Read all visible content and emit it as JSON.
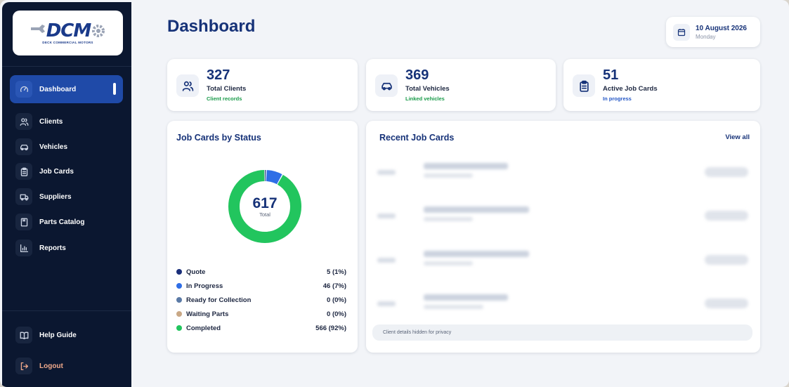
{
  "brand": {
    "logo_text": "DCM",
    "logo_subtitle": "DECK COMMERCIAL MOTORS"
  },
  "sidebar": {
    "items": [
      {
        "label": "Dashboard",
        "icon": "speedometer-icon",
        "active": true
      },
      {
        "label": "Clients",
        "icon": "users-icon"
      },
      {
        "label": "Vehicles",
        "icon": "car-icon"
      },
      {
        "label": "Job Cards",
        "icon": "clipboard-icon"
      },
      {
        "label": "Suppliers",
        "icon": "truck-icon"
      },
      {
        "label": "Parts Catalog",
        "icon": "book-icon"
      },
      {
        "label": "Reports",
        "icon": "bar-chart-icon"
      }
    ],
    "help_label": "Help Guide",
    "logout_label": "Logout"
  },
  "header": {
    "title": "Dashboard",
    "date": "10 August 2026",
    "weekday": "Monday"
  },
  "stats": [
    {
      "value": "327",
      "label": "Total Clients",
      "sub": "Client records",
      "sub_color": "#1a9b4a"
    },
    {
      "value": "369",
      "label": "Total Vehicles",
      "sub": "Linked vehicles",
      "sub_color": "#1a9b4a"
    },
    {
      "value": "51",
      "label": "Active Job Cards",
      "sub": "In progress",
      "sub_color": "#2457c6"
    }
  ],
  "job_status": {
    "title": "Job Cards by Status",
    "total": "617",
    "total_label": "Total",
    "legend": [
      {
        "label": "Quote",
        "value": "5 (1%)",
        "color": "#1a2f7a"
      },
      {
        "label": "In Progress",
        "value": "46 (7%)",
        "color": "#2f6ee6"
      },
      {
        "label": "Ready for Collection",
        "value": "0 (0%)",
        "color": "#5b7aa6"
      },
      {
        "label": "Waiting Parts",
        "value": "0 (0%)",
        "color": "#c9a886"
      },
      {
        "label": "Completed",
        "value": "566 (92%)",
        "color": "#22c55e"
      }
    ]
  },
  "chart_data": {
    "type": "pie",
    "categories": [
      "Quote",
      "In Progress",
      "Ready for Collection",
      "Waiting Parts",
      "Completed"
    ],
    "values": [
      5,
      46,
      0,
      0,
      566
    ],
    "title": "Job Cards by Status",
    "colors": [
      "#1a2f7a",
      "#2f6ee6",
      "#5b7aa6",
      "#c9a886",
      "#22c55e"
    ],
    "legend": "bottom"
  },
  "recent": {
    "title": "Recent Job Cards",
    "view_all": "View all",
    "privacy_note": "Client details hidden for privacy",
    "row_count": 4
  },
  "colors": {
    "accent": "#163278",
    "sidebar_bg": "#0b1730",
    "active_nav": "#1f4aa8"
  }
}
